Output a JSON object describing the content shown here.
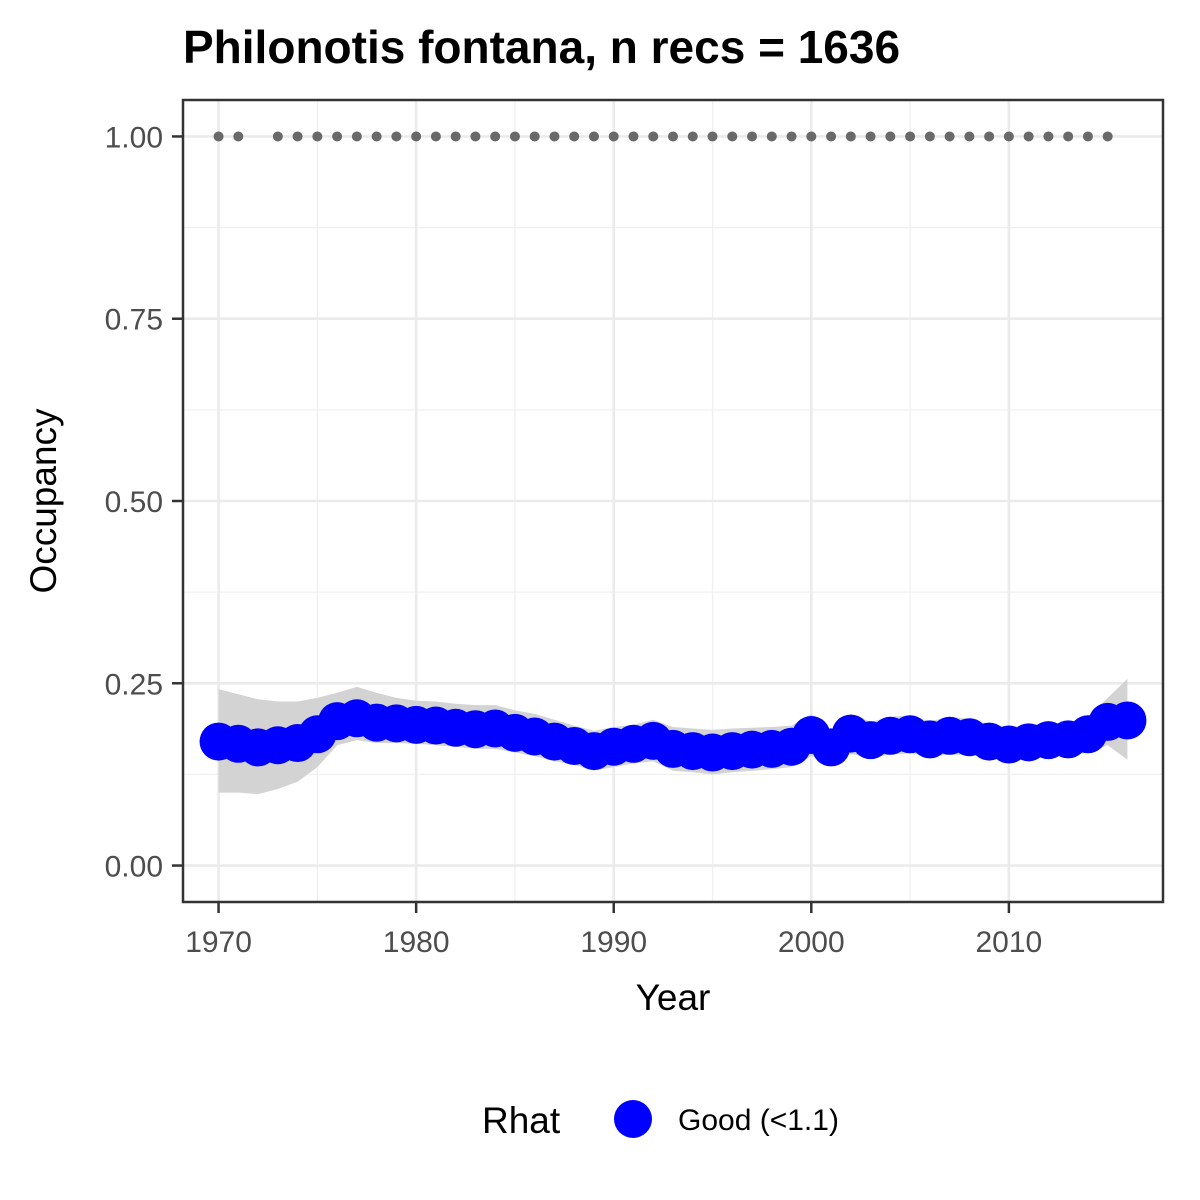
{
  "chart_data": {
    "type": "line",
    "title": "Philonotis fontana, n recs = 1636",
    "xlabel": "Year",
    "ylabel": "Occupancy",
    "xlim": [
      1968.2,
      2017.8
    ],
    "ylim": [
      -0.05,
      1.05
    ],
    "x_ticks": [
      1970,
      1980,
      1990,
      2000,
      2010
    ],
    "x_tick_labels": [
      "1970",
      "1980",
      "1990",
      "2000",
      "2010"
    ],
    "y_ticks": [
      0,
      0.25,
      0.5,
      0.75,
      1.0
    ],
    "y_tick_labels": [
      "0.00",
      "0.25",
      "0.50",
      "0.75",
      "1.00"
    ],
    "grid": true,
    "series": [
      {
        "name": "Good (<1.1)",
        "color": "#0000ff",
        "x": [
          1970,
          1971,
          1972,
          1973,
          1974,
          1975,
          1976,
          1977,
          1978,
          1979,
          1980,
          1981,
          1982,
          1983,
          1984,
          1985,
          1986,
          1987,
          1988,
          1989,
          1990,
          1991,
          1992,
          1993,
          1994,
          1995,
          1996,
          1997,
          1998,
          1999,
          2000,
          2001,
          2002,
          2003,
          2004,
          2005,
          2006,
          2007,
          2008,
          2009,
          2010,
          2011,
          2012,
          2013,
          2014,
          2015,
          2016
        ],
        "y": [
          0.17,
          0.167,
          0.162,
          0.165,
          0.168,
          0.18,
          0.198,
          0.202,
          0.196,
          0.195,
          0.193,
          0.192,
          0.189,
          0.187,
          0.188,
          0.182,
          0.177,
          0.17,
          0.164,
          0.157,
          0.163,
          0.167,
          0.171,
          0.16,
          0.157,
          0.155,
          0.157,
          0.159,
          0.16,
          0.163,
          0.179,
          0.162,
          0.181,
          0.172,
          0.178,
          0.18,
          0.173,
          0.178,
          0.176,
          0.17,
          0.166,
          0.169,
          0.172,
          0.173,
          0.18,
          0.197,
          0.199
        ],
        "lower": [
          0.1,
          0.1,
          0.098,
          0.105,
          0.115,
          0.135,
          0.165,
          0.172,
          0.168,
          0.168,
          0.167,
          0.165,
          0.163,
          0.16,
          0.16,
          0.155,
          0.15,
          0.143,
          0.138,
          0.13,
          0.135,
          0.14,
          0.143,
          0.13,
          0.128,
          0.125,
          0.128,
          0.13,
          0.132,
          0.135,
          0.15,
          0.143,
          0.153,
          0.148,
          0.152,
          0.154,
          0.15,
          0.152,
          0.152,
          0.147,
          0.145,
          0.147,
          0.15,
          0.15,
          0.155,
          0.165,
          0.145
        ],
        "upper": [
          0.242,
          0.235,
          0.228,
          0.225,
          0.225,
          0.23,
          0.237,
          0.245,
          0.237,
          0.23,
          0.226,
          0.225,
          0.222,
          0.22,
          0.22,
          0.213,
          0.208,
          0.2,
          0.192,
          0.185,
          0.19,
          0.193,
          0.2,
          0.19,
          0.188,
          0.186,
          0.188,
          0.189,
          0.19,
          0.192,
          0.208,
          0.184,
          0.208,
          0.197,
          0.204,
          0.206,
          0.198,
          0.204,
          0.201,
          0.194,
          0.19,
          0.193,
          0.195,
          0.196,
          0.205,
          0.23,
          0.256
        ]
      }
    ],
    "detection_x": [
      1970,
      1971,
      1973,
      1974,
      1975,
      1976,
      1977,
      1978,
      1979,
      1980,
      1981,
      1982,
      1983,
      1984,
      1985,
      1986,
      1987,
      1988,
      1989,
      1990,
      1991,
      1992,
      1993,
      1994,
      1995,
      1996,
      1997,
      1998,
      1999,
      2000,
      2001,
      2002,
      2003,
      2004,
      2005,
      2006,
      2007,
      2008,
      2009,
      2010,
      2011,
      2012,
      2013,
      2014,
      2015
    ],
    "detection_y": 1.0,
    "detection_color": "#696969",
    "band_color": "#d3d3d3",
    "legend": {
      "title": "Rhat",
      "placement": "bottom",
      "items": [
        {
          "label": "Good (<1.1)",
          "color": "#0000ff"
        }
      ]
    }
  }
}
